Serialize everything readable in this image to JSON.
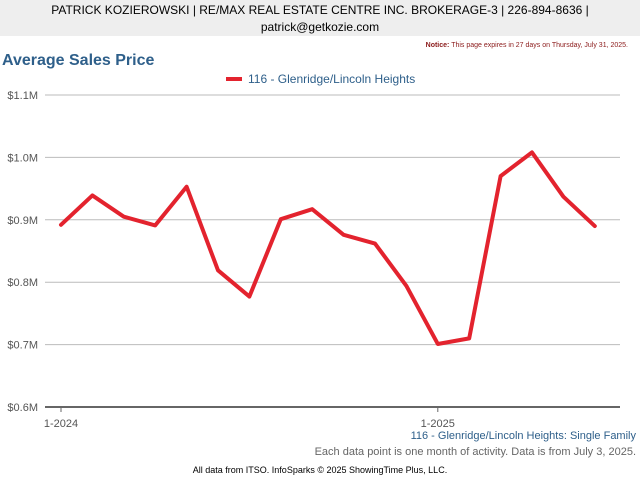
{
  "header": {
    "line1": "PATRICK KOZIEROWSKI | RE/MAX REAL ESTATE CENTRE INC. BROKERAGE-3 | 226-894-8636 |",
    "line2": "patrick@getkozie.com"
  },
  "notice": {
    "label": "Notice:",
    "text": "This page expires in 27 days on Thursday, July 31, 2025."
  },
  "footer": {
    "series_caption": "116 - Glenridge/Lincoln Heights: Single Family",
    "activity_note": "Each data point is one month of activity. Data is from July 3, 2025.",
    "source": "All data from ITSO. InfoSparks © 2025 ShowingTime Plus, LLC."
  },
  "colors": {
    "series": "#e3232e",
    "title": "#2e5f8a",
    "grid": "#bbbbbb"
  },
  "chart_data": {
    "type": "line",
    "title": "Average Sales Price",
    "x": [
      "2024-01",
      "2024-02",
      "2024-03",
      "2024-04",
      "2024-05",
      "2024-06",
      "2024-07",
      "2024-08",
      "2024-09",
      "2024-10",
      "2024-11",
      "2024-12",
      "2025-01",
      "2025-02",
      "2025-03",
      "2025-04",
      "2025-05",
      "2025-06"
    ],
    "x_tick_labels": [
      "1-2024",
      "1-2025"
    ],
    "series": [
      {
        "name": "116 - Glenridge/Lincoln Heights",
        "values": [
          892000,
          939000,
          905000,
          891000,
          953000,
          819000,
          777000,
          901000,
          917000,
          876000,
          862000,
          794000,
          701000,
          710000,
          970000,
          1008000,
          937000,
          890000
        ]
      }
    ],
    "ylim": [
      600000,
      1100000
    ],
    "y_ticks": [
      600000,
      700000,
      800000,
      900000,
      1000000,
      1100000
    ],
    "y_tick_labels": [
      "$0.6M",
      "$0.7M",
      "$0.8M",
      "$0.9M",
      "$1.0M",
      "$1.1M"
    ],
    "grid": true,
    "legend": "top"
  }
}
